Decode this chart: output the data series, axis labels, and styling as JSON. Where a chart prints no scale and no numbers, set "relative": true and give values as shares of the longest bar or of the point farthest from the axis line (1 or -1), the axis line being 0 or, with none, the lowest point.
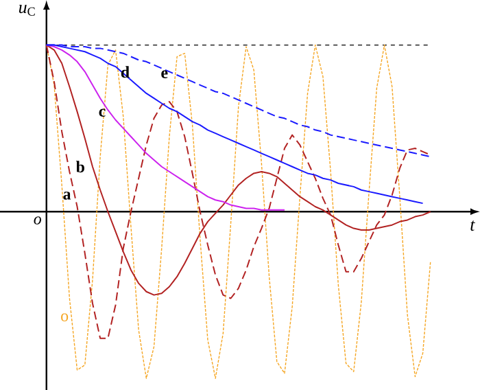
{
  "chart_data": {
    "type": "line",
    "relative": true,
    "xlabel": "*t*",
    "ylabel": "*u*$_{C}$",
    "annotations": [
      "*o*"
    ],
    "marker": "none",
    "categories": [
      null,
      null,
      null,
      null,
      null,
      null,
      null,
      null,
      null,
      null,
      null,
      null,
      null,
      null,
      null,
      null,
      null,
      null,
      null,
      null,
      null,
      null,
      null,
      null,
      null,
      null,
      null,
      null,
      null,
      null,
      null,
      null,
      null,
      null,
      null,
      null,
      null,
      null,
      null,
      null,
      null,
      null,
      null,
      null,
      null,
      null,
      null,
      null,
      null,
      null,
      null
    ],
    "ref_lines": [
      {
        "axis": "y",
        "value": 1,
        "color": "#000000",
        "line_style": "dashed"
      }
    ],
    "series": [
      {
        "name": "a",
        "color": "#b22222",
        "line_style": "dashed",
        "values": [
          1,
          0.78,
          0.48,
          0.24,
          0.03,
          -0.25,
          -0.55,
          -0.76,
          -0.76,
          -0.56,
          -0.22,
          0,
          0.2,
          0.4,
          0.56,
          0.64,
          0.66,
          0.6,
          0.45,
          0.23,
          0,
          -0.2,
          -0.38,
          -0.5,
          -0.52,
          -0.46,
          -0.35,
          -0.21,
          -0.1,
          0.02,
          0.2,
          0.38,
          0.46,
          0.4,
          0.3,
          0.2,
          0.08,
          -0.02,
          -0.2,
          -0.36,
          -0.36,
          -0.28,
          -0.18,
          -0.08,
          -0.02,
          0.1,
          0.26,
          0.37,
          0.38,
          0.36,
          0.34
        ]
      },
      {
        "name": "b",
        "color": "#b22222",
        "line_style": "solid",
        "values": [
          1,
          0.97,
          0.89,
          0.75,
          0.6,
          0.44,
          0.27,
          0.13,
          0,
          -0.12,
          -0.24,
          -0.35,
          -0.43,
          -0.48,
          -0.5,
          -0.49,
          -0.45,
          -0.39,
          -0.31,
          -0.22,
          -0.13,
          -0.06,
          -0.01,
          0.04,
          0.1,
          0.16,
          0.2,
          0.23,
          0.24,
          0.23,
          0.21,
          0.17,
          0.13,
          0.09,
          0.06,
          0.03,
          0.01,
          -0.02,
          -0.05,
          -0.08,
          -0.1,
          -0.11,
          -0.11,
          -0.1,
          -0.09,
          -0.08,
          -0.06,
          -0.05,
          -0.03,
          -0.02,
          0
        ]
      },
      {
        "name": "c",
        "color": "#cc22ee",
        "line_style": "solid",
        "values": [
          1,
          0.99,
          0.97,
          0.94,
          0.9,
          0.84,
          0.76,
          0.68,
          0.61,
          0.55,
          0.5,
          0.45,
          0.4,
          0.35,
          0.31,
          0.27,
          0.24,
          0.21,
          0.18,
          0.15,
          0.12,
          0.09,
          0.07,
          0.06,
          0.04,
          0.03,
          0.02,
          0.02,
          0.01,
          0.01,
          0.01,
          0.01,
          null,
          null,
          null,
          null,
          null,
          null,
          null,
          null,
          null,
          null,
          null,
          null,
          null,
          null,
          null,
          null,
          null,
          null,
          null
        ]
      },
      {
        "name": "d",
        "color": "#1a1aff",
        "line_style": "solid",
        "values": [
          1,
          1,
          0.99,
          0.98,
          0.97,
          0.96,
          0.94,
          0.92,
          0.89,
          0.87,
          0.83,
          0.79,
          0.75,
          0.71,
          0.68,
          0.65,
          0.62,
          0.6,
          0.57,
          0.54,
          0.52,
          0.49,
          0.47,
          0.45,
          0.43,
          0.41,
          0.39,
          0.37,
          0.35,
          0.33,
          0.31,
          0.29,
          0.27,
          0.25,
          0.23,
          0.22,
          0.2,
          0.19,
          0.17,
          0.16,
          0.15,
          0.13,
          0.12,
          0.11,
          0.1,
          0.09,
          0.08,
          0.07,
          0.06,
          0.05,
          null
        ]
      },
      {
        "name": "e",
        "color": "#1a1aff",
        "line_style": "dashed",
        "values": [
          1,
          1,
          1,
          0.99,
          0.99,
          0.99,
          0.98,
          0.98,
          0.97,
          0.96,
          0.95,
          0.93,
          0.91,
          0.9,
          0.88,
          0.86,
          0.84,
          0.82,
          0.8,
          0.78,
          0.76,
          0.74,
          0.72,
          0.71,
          0.69,
          0.67,
          0.65,
          0.63,
          0.61,
          0.59,
          0.57,
          0.56,
          0.54,
          0.52,
          0.51,
          0.49,
          0.48,
          0.46,
          0.45,
          0.44,
          0.43,
          0.42,
          0.41,
          0.4,
          0.39,
          0.38,
          0.37,
          0.36,
          0.35,
          0.34,
          0.33
        ]
      },
      {
        "name": "o",
        "color": "#f5a623",
        "line_style": "dashed",
        "values": [
          1,
          0.76,
          0.16,
          -0.52,
          -0.95,
          -0.92,
          -0.41,
          0.33,
          0.88,
          0.97,
          0.57,
          -0.09,
          -0.71,
          -1,
          -0.81,
          -0.22,
          0.45,
          0.93,
          0.95,
          0.52,
          -0.16,
          -0.77,
          -1,
          -0.73,
          -0.07,
          0.63,
          0.99,
          0.85,
          0.29,
          -0.39,
          -0.9,
          -0.97,
          -0.57,
          0.09,
          0.71,
          1,
          0.81,
          0.24,
          -0.44,
          -0.91,
          -0.96,
          -0.54,
          0.12,
          0.74,
          1,
          0.75,
          0.09,
          -0.62,
          -0.99,
          -0.85,
          -0.3
        ]
      }
    ]
  }
}
